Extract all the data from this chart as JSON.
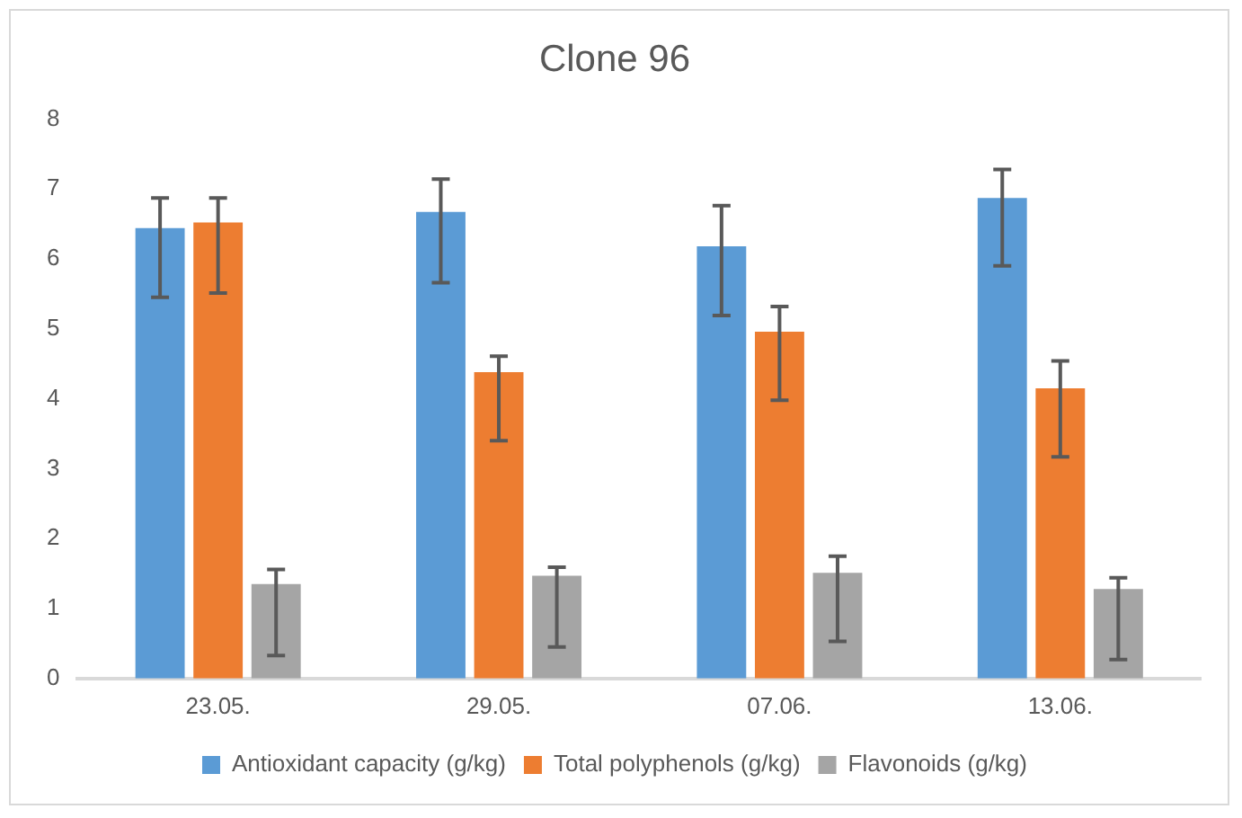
{
  "chart_data": {
    "type": "bar",
    "title": "Clone 96",
    "categories": [
      "23.05.",
      "29.05.",
      "07.06.",
      "13.06."
    ],
    "series": [
      {
        "name": "Antioxidant capacity (g/kg)",
        "color": "#5b9bd5",
        "values": [
          6.44,
          6.67,
          6.18,
          6.87
        ],
        "errors": [
          [
            5.45,
            6.87
          ],
          [
            5.66,
            7.14
          ],
          [
            5.19,
            6.76
          ],
          [
            5.9,
            7.28
          ]
        ]
      },
      {
        "name": "Total polyphenols (g/kg)",
        "color": "#ed7d31",
        "values": [
          6.52,
          4.38,
          4.96,
          4.15
        ],
        "errors": [
          [
            5.51,
            6.87
          ],
          [
            3.4,
            4.61
          ],
          [
            3.98,
            5.32
          ],
          [
            3.17,
            4.54
          ]
        ]
      },
      {
        "name": "Flavonoids (g/kg)",
        "color": "#a5a5a5",
        "values": [
          1.35,
          1.47,
          1.51,
          1.28
        ],
        "errors": [
          [
            0.33,
            1.56
          ],
          [
            0.45,
            1.59
          ],
          [
            0.53,
            1.75
          ],
          [
            0.27,
            1.44
          ]
        ]
      }
    ],
    "ylim": [
      0,
      8
    ],
    "yticks": [
      0,
      1,
      2,
      3,
      4,
      5,
      6,
      7,
      8
    ],
    "grid": false,
    "legend": "bottom"
  }
}
